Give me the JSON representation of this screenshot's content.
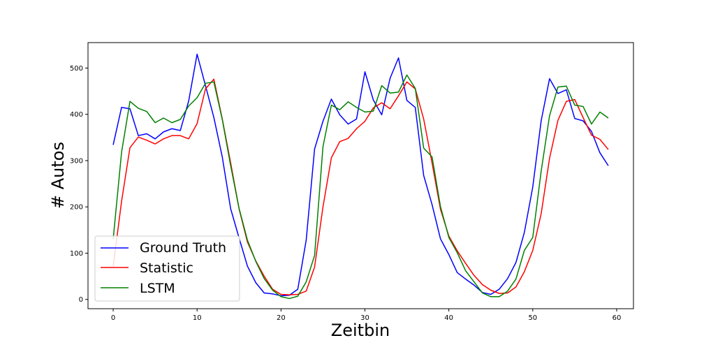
{
  "chart_data": {
    "type": "line",
    "title": "",
    "xlabel": "Zeitbin",
    "ylabel": "# Autos",
    "xlim": [
      -3,
      62
    ],
    "ylim": [
      -20,
      555
    ],
    "x_ticks": [
      0,
      10,
      20,
      30,
      40,
      50,
      60
    ],
    "y_ticks": [
      0,
      100,
      200,
      300,
      400,
      500
    ],
    "grid": false,
    "legend_position": "lower-left",
    "x": [
      0,
      1,
      2,
      3,
      4,
      5,
      6,
      7,
      8,
      9,
      10,
      11,
      12,
      13,
      14,
      15,
      16,
      17,
      18,
      19,
      20,
      21,
      22,
      23,
      24,
      25,
      26,
      27,
      28,
      29,
      30,
      31,
      32,
      33,
      34,
      35,
      36,
      37,
      38,
      39,
      40,
      41,
      42,
      43,
      44,
      45,
      46,
      47,
      48,
      49,
      50,
      51,
      52,
      53,
      54,
      55,
      56,
      57,
      58,
      59
    ],
    "series": [
      {
        "name": "Ground Truth",
        "color": "#0000ff",
        "values": [
          334,
          415,
          412,
          354,
          358,
          347,
          362,
          369,
          365,
          429,
          530,
          462,
          393,
          308,
          196,
          133,
          72,
          36,
          14,
          12,
          8,
          9,
          22,
          128,
          325,
          385,
          433,
          399,
          379,
          390,
          492,
          431,
          399,
          478,
          522,
          430,
          415,
          268,
          205,
          131,
          97,
          58,
          44,
          31,
          15,
          11,
          22,
          45,
          80,
          145,
          243,
          386,
          477,
          445,
          453,
          391,
          386,
          363,
          317,
          289
        ]
      },
      {
        "name": "Statistic",
        "color": "#ff0000",
        "values": [
          71,
          212,
          328,
          351,
          344,
          336,
          347,
          354,
          354,
          347,
          380,
          455,
          476,
          390,
          295,
          196,
          124,
          83,
          50,
          22,
          11,
          10,
          11,
          18,
          70,
          200,
          306,
          341,
          348,
          369,
          385,
          414,
          425,
          412,
          440,
          470,
          455,
          390,
          295,
          195,
          137,
          105,
          78,
          52,
          32,
          20,
          13,
          14,
          27,
          60,
          106,
          185,
          305,
          387,
          428,
          432,
          393,
          355,
          346,
          324
        ]
      },
      {
        "name": "LSTM",
        "color": "#008000",
        "values": [
          130,
          318,
          428,
          413,
          406,
          382,
          392,
          382,
          389,
          418,
          436,
          467,
          470,
          389,
          289,
          197,
          128,
          82,
          45,
          20,
          6,
          2,
          7,
          38,
          95,
          330,
          420,
          410,
          427,
          415,
          405,
          407,
          462,
          446,
          448,
          485,
          456,
          327,
          308,
          201,
          134,
          101,
          62,
          38,
          14,
          6,
          6,
          18,
          44,
          106,
          134,
          277,
          397,
          459,
          461,
          420,
          417,
          379,
          405,
          392
        ]
      }
    ]
  }
}
